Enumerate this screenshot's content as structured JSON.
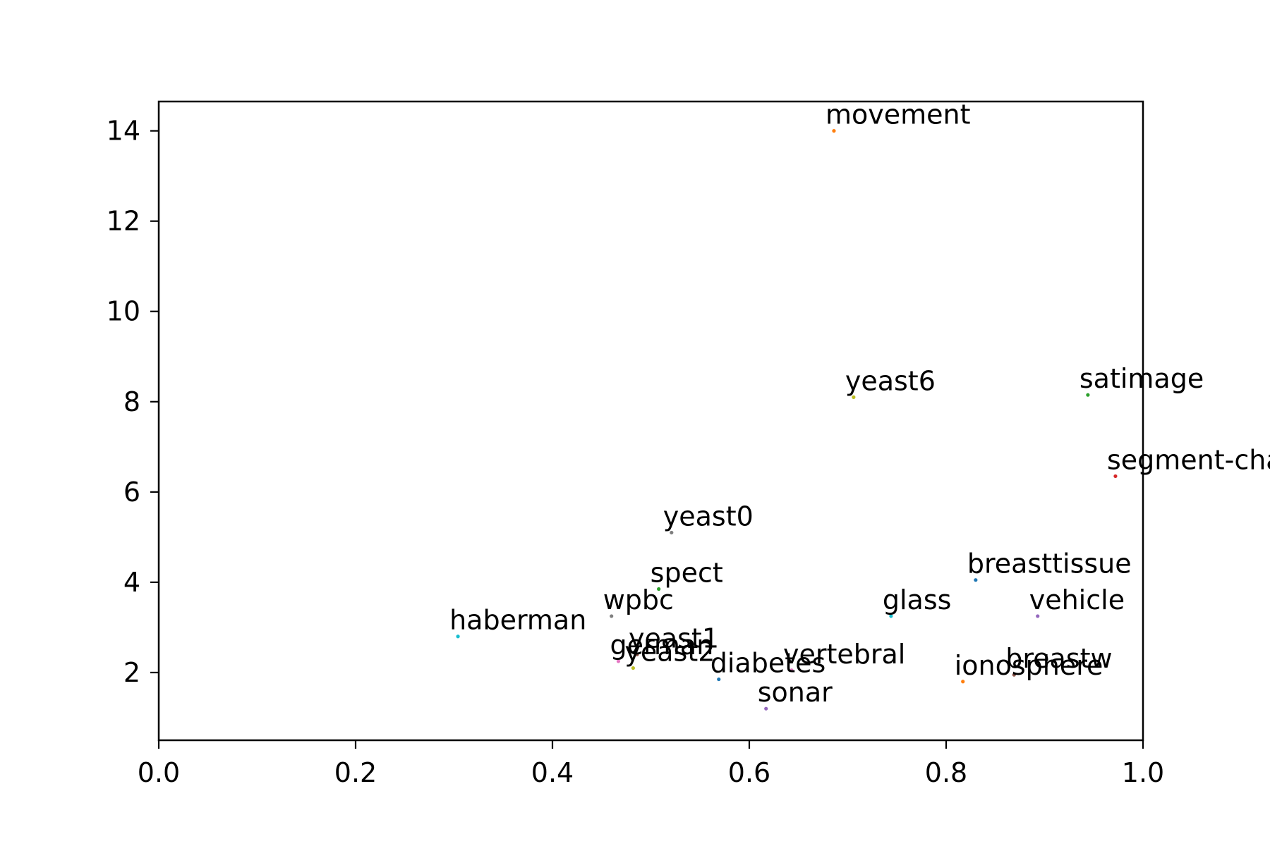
{
  "chart_data": {
    "type": "scatter",
    "title": "",
    "xlabel": "",
    "ylabel": "",
    "xlim": [
      0.0,
      1.0
    ],
    "ylim": [
      0.5,
      14.65
    ],
    "grid": false,
    "legend": "none",
    "xticks": [
      {
        "value": 0.0,
        "label": "0.0"
      },
      {
        "value": 0.2,
        "label": "0.2"
      },
      {
        "value": 0.4,
        "label": "0.4"
      },
      {
        "value": 0.6,
        "label": "0.6"
      },
      {
        "value": 0.8,
        "label": "0.8"
      },
      {
        "value": 1.0,
        "label": "1.0"
      }
    ],
    "yticks": [
      {
        "value": 2,
        "label": "2"
      },
      {
        "value": 4,
        "label": "4"
      },
      {
        "value": 6,
        "label": "6"
      },
      {
        "value": 8,
        "label": "8"
      },
      {
        "value": 10,
        "label": "10"
      },
      {
        "value": 12,
        "label": "12"
      },
      {
        "value": 14,
        "label": "14"
      }
    ],
    "points": [
      {
        "label": "movement",
        "x": 0.686,
        "y": 14.0,
        "color": "#ff7f0e"
      },
      {
        "label": "yeast6",
        "x": 0.706,
        "y": 8.1,
        "color": "#bcbd22"
      },
      {
        "label": "satimage",
        "x": 0.944,
        "y": 8.15,
        "color": "#2ca02c"
      },
      {
        "label": "segment-challenge",
        "x": 0.972,
        "y": 6.35,
        "color": "#d62728"
      },
      {
        "label": "yeast0",
        "x": 0.521,
        "y": 5.1,
        "color": "#7f7f7f"
      },
      {
        "label": "breasttissue",
        "x": 0.83,
        "y": 4.05,
        "color": "#1f77b4"
      },
      {
        "label": "spect",
        "x": 0.508,
        "y": 3.85,
        "color": "#2ca02c"
      },
      {
        "label": "vehicle",
        "x": 0.893,
        "y": 3.25,
        "color": "#9467bd"
      },
      {
        "label": "glass",
        "x": 0.744,
        "y": 3.25,
        "color": "#17becf"
      },
      {
        "label": "wpbc",
        "x": 0.46,
        "y": 3.25,
        "color": "#7f7f7f"
      },
      {
        "label": "haberman",
        "x": 0.304,
        "y": 2.8,
        "color": "#17becf"
      },
      {
        "label": "yeast1",
        "x": 0.486,
        "y": 2.4,
        "color": "#8c564b"
      },
      {
        "label": "german",
        "x": 0.467,
        "y": 2.25,
        "color": "#e377c2"
      },
      {
        "label": "yeast2",
        "x": 0.482,
        "y": 2.1,
        "color": "#bcbd22"
      },
      {
        "label": "vertebral",
        "x": 0.643,
        "y": 2.05,
        "color": "#e377c2"
      },
      {
        "label": "diabetes",
        "x": 0.569,
        "y": 1.85,
        "color": "#1f77b4"
      },
      {
        "label": "breastw",
        "x": 0.869,
        "y": 1.95,
        "color": "#8c564b"
      },
      {
        "label": "ionosphere",
        "x": 0.817,
        "y": 1.8,
        "color": "#ff7f0e"
      },
      {
        "label": "sonar",
        "x": 0.617,
        "y": 1.2,
        "color": "#9467bd"
      }
    ]
  }
}
